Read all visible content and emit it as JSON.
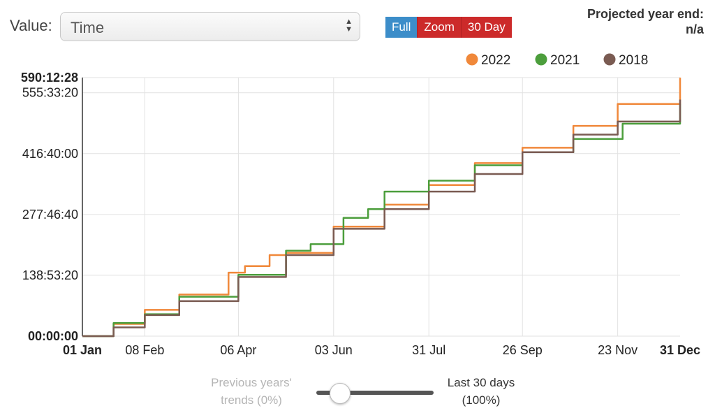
{
  "controls": {
    "value_label": "Value:",
    "value_select": "Time",
    "buttons": {
      "full": "Full",
      "zoom": "Zoom",
      "thirty_day": "30 Day"
    },
    "projected_label": "Projected year end:",
    "projected_value": "n/a"
  },
  "slider": {
    "left_label_line1": "Previous years'",
    "left_label_line2": "trends (0%)",
    "right_label_line1": "Last 30 days",
    "right_label_line2": "(100%)",
    "value_fraction": 0.2
  },
  "chart_data": {
    "type": "line",
    "x_unit": "day of year",
    "y_unit": "hours",
    "xlim": [
      1,
      365
    ],
    "ylim": [
      0,
      590.2
    ],
    "x_ticks": [
      {
        "day": 1,
        "label": "01 Jan",
        "bold": true
      },
      {
        "day": 39,
        "label": "08 Feb",
        "bold": false
      },
      {
        "day": 96,
        "label": "06 Apr",
        "bold": false
      },
      {
        "day": 154,
        "label": "03 Jun",
        "bold": false
      },
      {
        "day": 212,
        "label": "31 Jul",
        "bold": false
      },
      {
        "day": 269,
        "label": "26 Sep",
        "bold": false
      },
      {
        "day": 327,
        "label": "23 Nov",
        "bold": false
      },
      {
        "day": 365,
        "label": "31 Dec",
        "bold": true
      }
    ],
    "y_ticks": [
      {
        "hours": 0,
        "label": "00:00:00",
        "bold": true
      },
      {
        "hours": 138.89,
        "label": "138:53:20",
        "bold": false
      },
      {
        "hours": 277.78,
        "label": "277:46:40",
        "bold": false
      },
      {
        "hours": 416.67,
        "label": "416:40:00",
        "bold": false
      },
      {
        "hours": 555.56,
        "label": "555:33:20",
        "bold": false
      },
      {
        "hours": 590.2,
        "label": "590:12:28",
        "bold": true
      }
    ],
    "legend_position": "top-right",
    "grid": true,
    "series": [
      {
        "name": "2022",
        "color": "#f0883a",
        "points": [
          [
            1,
            0
          ],
          [
            20,
            28
          ],
          [
            39,
            60
          ],
          [
            60,
            95
          ],
          [
            90,
            145
          ],
          [
            100,
            160
          ],
          [
            115,
            185
          ],
          [
            125,
            190
          ],
          [
            154,
            250
          ],
          [
            185,
            300
          ],
          [
            212,
            345
          ],
          [
            240,
            395
          ],
          [
            269,
            430
          ],
          [
            300,
            480
          ],
          [
            327,
            530
          ],
          [
            365,
            590
          ]
        ]
      },
      {
        "name": "2021",
        "color": "#4c9e3c",
        "points": [
          [
            1,
            0
          ],
          [
            20,
            30
          ],
          [
            39,
            50
          ],
          [
            60,
            90
          ],
          [
            96,
            140
          ],
          [
            125,
            195
          ],
          [
            140,
            210
          ],
          [
            160,
            270
          ],
          [
            175,
            290
          ],
          [
            185,
            330
          ],
          [
            212,
            355
          ],
          [
            240,
            390
          ],
          [
            269,
            420
          ],
          [
            300,
            450
          ],
          [
            330,
            485
          ],
          [
            365,
            530
          ]
        ]
      },
      {
        "name": "2018",
        "color": "#7a5b52",
        "points": [
          [
            1,
            0
          ],
          [
            20,
            20
          ],
          [
            39,
            48
          ],
          [
            60,
            80
          ],
          [
            96,
            135
          ],
          [
            125,
            185
          ],
          [
            154,
            245
          ],
          [
            185,
            290
          ],
          [
            212,
            330
          ],
          [
            240,
            370
          ],
          [
            269,
            420
          ],
          [
            300,
            460
          ],
          [
            327,
            490
          ],
          [
            365,
            540
          ]
        ]
      }
    ]
  }
}
